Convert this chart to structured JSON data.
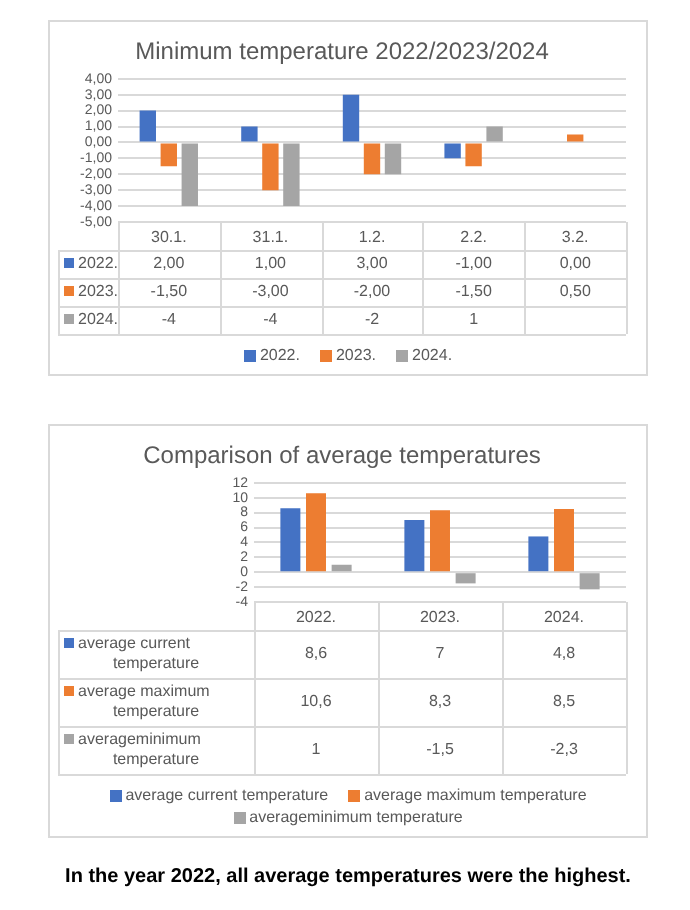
{
  "chart_data": [
    {
      "type": "bar",
      "title": "Minimum temperature 2022/2023/2024",
      "categories": [
        "30.1.",
        "31.1.",
        "1.2.",
        "2.2.",
        "3.2."
      ],
      "series": [
        {
          "name": "2022.",
          "color": "#4472c4",
          "values": [
            2,
            1,
            3,
            -1,
            0
          ],
          "value_labels": [
            "2,00",
            "1,00",
            "3,00",
            "-1,00",
            "0,00"
          ]
        },
        {
          "name": "2023.",
          "color": "#ed7d31",
          "values": [
            -1.5,
            -3,
            -2,
            -1.5,
            0.5
          ],
          "value_labels": [
            "-1,50",
            "-3,00",
            "-2,00",
            "-1,50",
            "0,50"
          ]
        },
        {
          "name": "2024.",
          "color": "#a5a5a5",
          "values": [
            -4,
            -4,
            -2,
            1,
            null
          ],
          "value_labels": [
            "-4",
            "-4",
            "-2",
            "1",
            null
          ]
        }
      ],
      "ylim": [
        -5,
        4
      ],
      "yticks": [
        {
          "value": 4,
          "label": "4,00"
        },
        {
          "value": 3,
          "label": "3,00"
        },
        {
          "value": 2,
          "label": "2,00"
        },
        {
          "value": 1,
          "label": "1,00"
        },
        {
          "value": 0,
          "label": "0,00"
        },
        {
          "value": -1,
          "label": "-1,00"
        },
        {
          "value": -2,
          "label": "-2,00"
        },
        {
          "value": -3,
          "label": "-3,00"
        },
        {
          "value": -4,
          "label": "-4,00"
        },
        {
          "value": -5,
          "label": "-5,00"
        }
      ],
      "grid": "y",
      "legend": "bottom"
    },
    {
      "type": "bar",
      "title": "Comparison of average temperatures",
      "categories": [
        "2022.",
        "2023.",
        "2024."
      ],
      "series": [
        {
          "name": "average current temperature",
          "color": "#4472c4",
          "values": [
            8.6,
            7,
            4.8
          ],
          "value_labels": [
            "8,6",
            "7",
            "4,8"
          ]
        },
        {
          "name": "average maximum temperature",
          "color": "#ed7d31",
          "values": [
            10.6,
            8.3,
            8.5
          ],
          "value_labels": [
            "10,6",
            "8,3",
            "8,5"
          ]
        },
        {
          "name": "averageminimum temperature",
          "color": "#a5a5a5",
          "values": [
            1,
            -1.5,
            -2.3
          ],
          "value_labels": [
            "1",
            "-1,5",
            "-2,3"
          ]
        }
      ],
      "ylim": [
        -4,
        12
      ],
      "yticks": [
        12,
        10,
        8,
        6,
        4,
        2,
        0,
        -2,
        -4
      ],
      "grid": "y",
      "legend": "bottom",
      "annotations": [
        "In the year 2022, all average temperatures were the highest."
      ]
    }
  ]
}
